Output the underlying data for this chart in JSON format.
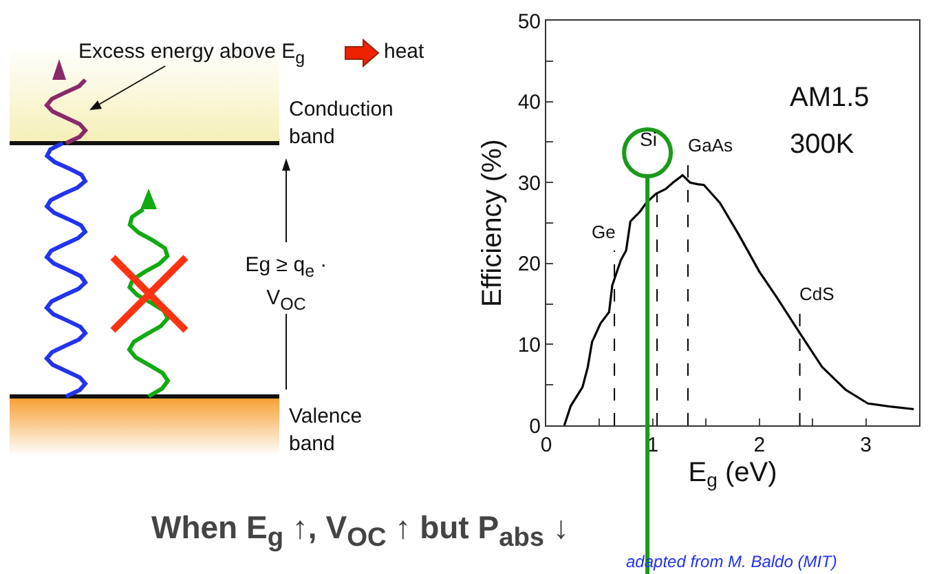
{
  "chart_data": {
    "type": "line",
    "xlabel": "E$_{g}$ (eV)",
    "ylabel": "Efficiency (%)",
    "xlim": [
      0,
      3.5
    ],
    "ylim": [
      0,
      50
    ],
    "xticks": [
      0,
      {
        "value": 0.5,
        "label": null
      },
      1,
      {
        "value": 1.5,
        "label": null
      },
      2,
      {
        "value": 2.5,
        "label": null
      },
      3
    ],
    "yticks": [
      0,
      {
        "value": 5,
        "label": null
      },
      10,
      {
        "value": 15,
        "label": null
      },
      20,
      {
        "value": 25,
        "label": null
      },
      30,
      {
        "value": 35,
        "label": null
      },
      40,
      {
        "value": 45,
        "label": null
      },
      50
    ],
    "grid": false,
    "legend": false,
    "marker": "none",
    "series": [
      {
        "color": "#000000",
        "line_style": "solid",
        "x": [
          0.17,
          0.23,
          0.34,
          0.39,
          0.43,
          0.51,
          0.59,
          0.62,
          0.7,
          0.75,
          0.79,
          0.88,
          0.94,
          1.03,
          1.12,
          1.19,
          1.28,
          1.35,
          1.42,
          1.48,
          1.63,
          1.81,
          2.0,
          2.16,
          2.38,
          2.59,
          2.81,
          3.02,
          3.24,
          3.45
        ],
        "values": [
          0,
          2.4,
          4.7,
          7.2,
          10.3,
          12.6,
          14,
          17.3,
          20.4,
          21.6,
          25.2,
          26.4,
          27.5,
          28.6,
          29.2,
          30,
          30.9,
          30,
          29.8,
          29.7,
          27.5,
          23.5,
          19,
          15.9,
          11.4,
          7.2,
          4.4,
          2.7,
          2.3,
          2.0
        ]
      },
      {
        "name": "Ge",
        "color": "#000000",
        "line_style": "dashed",
        "x": [
          0.64,
          0.64
        ],
        "values": [
          0,
          21.6
        ]
      },
      {
        "color": "#000000",
        "line_style": "dashed",
        "x": [
          1.04,
          1.04
        ],
        "values": [
          0,
          28.6
        ]
      },
      {
        "name": "GaAs",
        "color": "#000000",
        "line_style": "dashed",
        "x": [
          1.33,
          1.33
        ],
        "values": [
          0,
          32.3
        ]
      },
      {
        "name": "CdS",
        "color": "#000000",
        "line_style": "dashed",
        "x": [
          2.38,
          2.38
        ],
        "values": [
          0,
          14
        ]
      }
    ],
    "ref_lines": [
      {
        "axis": "x",
        "value": 0.95,
        "label": "Si",
        "color": "#1a9a1a"
      }
    ],
    "annotations": [
      "AM1.5",
      "300K",
      "Excess energy above E$_{g}$",
      "heat",
      "Conduction band",
      "Valence band",
      "Eg ≥ q$_{e}$ · V$_{OC}$",
      "When E$_{g}$ ↑,  V$_{OC}$ ↑  but  P$_{abs}$ ↓",
      "adapted from M. Baldo (MIT)"
    ]
  }
}
